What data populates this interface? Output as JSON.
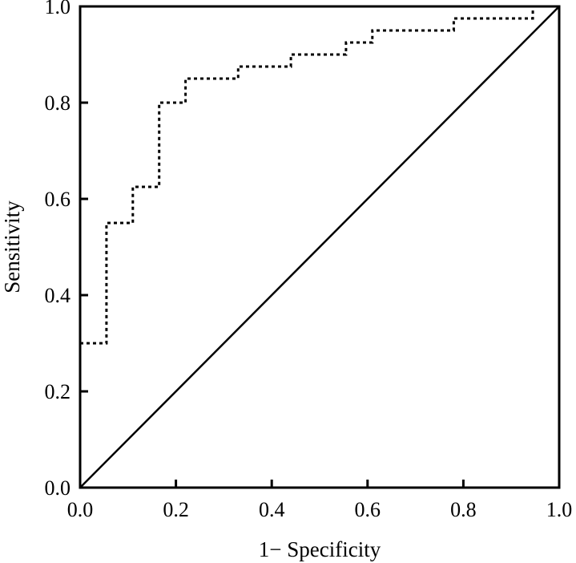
{
  "chart_data": {
    "type": "line",
    "xlabel": "1− Specificity",
    "ylabel": "Sensitivity",
    "xlim": [
      0,
      1
    ],
    "ylim": [
      0,
      1
    ],
    "xticks": [
      "0.0",
      "0.2",
      "0.4",
      "0.6",
      "0.8",
      "1.0"
    ],
    "yticks": [
      "0.0",
      "0.2",
      "0.4",
      "0.6",
      "0.8",
      "1.0"
    ],
    "grid": false,
    "series": [
      {
        "style": "dotted-step",
        "color": "#000000",
        "x": [
          0.0,
          0.055,
          0.055,
          0.11,
          0.11,
          0.165,
          0.165,
          0.22,
          0.22,
          0.33,
          0.33,
          0.44,
          0.44,
          0.555,
          0.555,
          0.61,
          0.61,
          0.78,
          0.78,
          0.945,
          0.945,
          1.0
        ],
        "y": [
          0.3,
          0.3,
          0.55,
          0.55,
          0.625,
          0.625,
          0.8,
          0.8,
          0.85,
          0.85,
          0.875,
          0.875,
          0.9,
          0.9,
          0.925,
          0.925,
          0.95,
          0.95,
          0.975,
          0.975,
          1.0,
          1.0
        ]
      },
      {
        "style": "solid",
        "color": "#000000",
        "x": [
          0,
          1
        ],
        "y": [
          0,
          1
        ]
      }
    ]
  }
}
